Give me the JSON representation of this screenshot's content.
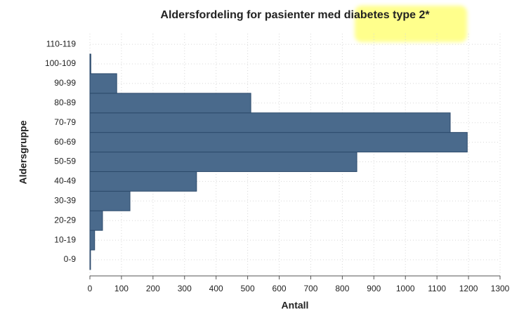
{
  "chart_data": {
    "type": "barh",
    "title": "Aldersfordeling for pasienter med diabetes type 2*",
    "x_label": "Antall",
    "y_label": "Aldersgruppe",
    "categories": [
      "0-9",
      "10-19",
      "20-29",
      "30-39",
      "40-49",
      "50-59",
      "60-69",
      "70-79",
      "80-89",
      "90-99",
      "100-109",
      "110-119"
    ],
    "values": [
      2,
      15,
      40,
      127,
      338,
      846,
      1196,
      1142,
      510,
      85,
      3,
      0
    ],
    "color": "#4a6a8c",
    "xlim": [
      0,
      1300
    ],
    "xticks": [
      0,
      100,
      200,
      300,
      400,
      500,
      600,
      700,
      800,
      900,
      1000,
      1100,
      1200,
      1300
    ],
    "grid": true
  }
}
